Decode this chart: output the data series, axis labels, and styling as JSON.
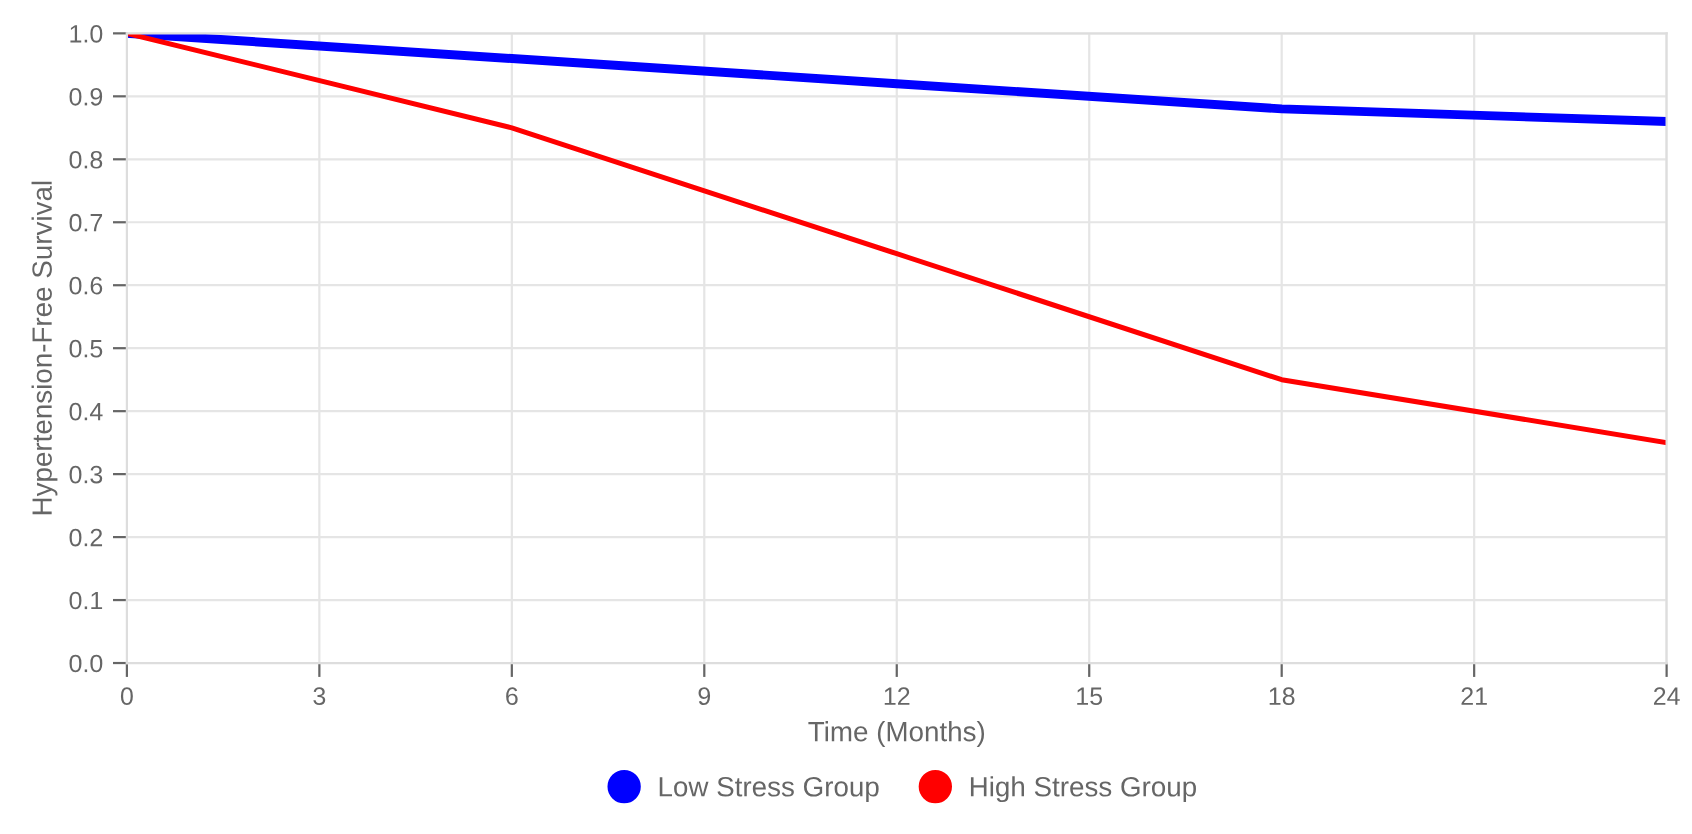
{
  "chart_data": {
    "type": "line",
    "xlabel": "Time (Months)",
    "ylabel": "Hypertension-Free Survival",
    "x": [
      0,
      6,
      12,
      18,
      24
    ],
    "series": [
      {
        "name": "Low Stress Group",
        "color": "#0000ff",
        "values": [
          1.0,
          0.96,
          0.92,
          0.88,
          0.86
        ]
      },
      {
        "name": "High Stress Group",
        "color": "#ff0000",
        "values": [
          1.0,
          0.85,
          0.65,
          0.45,
          0.35
        ]
      }
    ],
    "xlim": [
      0,
      24
    ],
    "xticks": [
      0,
      3,
      6,
      9,
      12,
      15,
      18,
      21,
      24
    ],
    "ylim": [
      0,
      1
    ],
    "yticks": [
      {
        "value": 0,
        "label": "0.0"
      },
      {
        "value": 0.1,
        "label": "0.1"
      },
      {
        "value": 0.2,
        "label": "0.2"
      },
      {
        "value": 0.3,
        "label": "0.3"
      },
      {
        "value": 0.4,
        "label": "0.4"
      },
      {
        "value": 0.5,
        "label": "0.5"
      },
      {
        "value": 0.6,
        "label": "0.6"
      },
      {
        "value": 0.7,
        "label": "0.7"
      },
      {
        "value": 0.8,
        "label": "0.8"
      },
      {
        "value": 0.9,
        "label": "0.9"
      },
      {
        "value": 1,
        "label": "1.0"
      }
    ],
    "grid": true,
    "legend": "bottom",
    "marker": "none",
    "line_style": "solid"
  }
}
